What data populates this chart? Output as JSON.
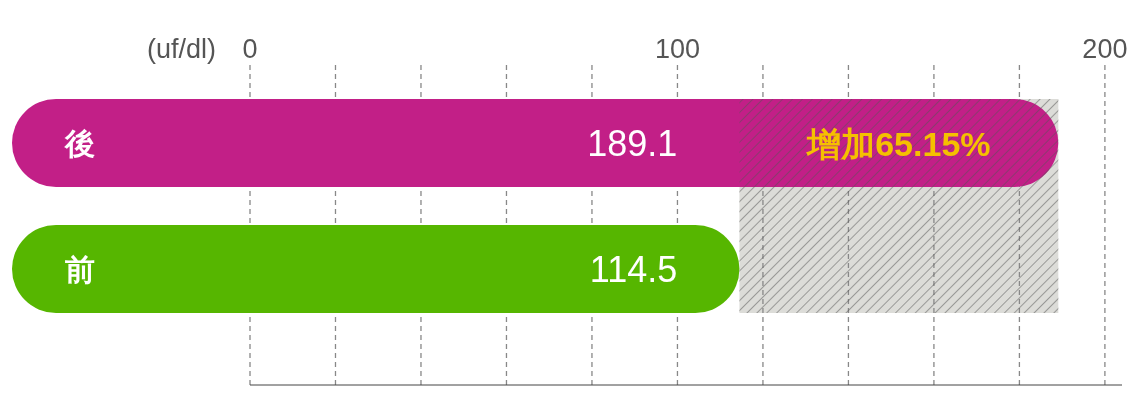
{
  "chart_data": {
    "type": "bar",
    "orientation": "horizontal",
    "categories": [
      "後",
      "前"
    ],
    "values": [
      189.1,
      114.5
    ],
    "colors": [
      "#c21f87",
      "#56b600"
    ],
    "data_labels": true,
    "xlabel": "(uf/dl)",
    "xlim": [
      0,
      204
    ],
    "xticks": [
      0,
      {
        "value": 20,
        "label": null
      },
      {
        "value": 40,
        "label": null
      },
      {
        "value": 60,
        "label": null
      },
      {
        "value": 80,
        "label": null
      },
      100,
      {
        "value": 120,
        "label": null
      },
      {
        "value": 140,
        "label": null
      },
      {
        "value": 160,
        "label": null
      },
      {
        "value": 180,
        "label": null
      },
      200
    ],
    "grid": "x",
    "bands": [
      {
        "axis": "x",
        "from": 114.5,
        "to": 189.1,
        "label": "增加65.15%",
        "color": "#f5c000"
      }
    ]
  }
}
